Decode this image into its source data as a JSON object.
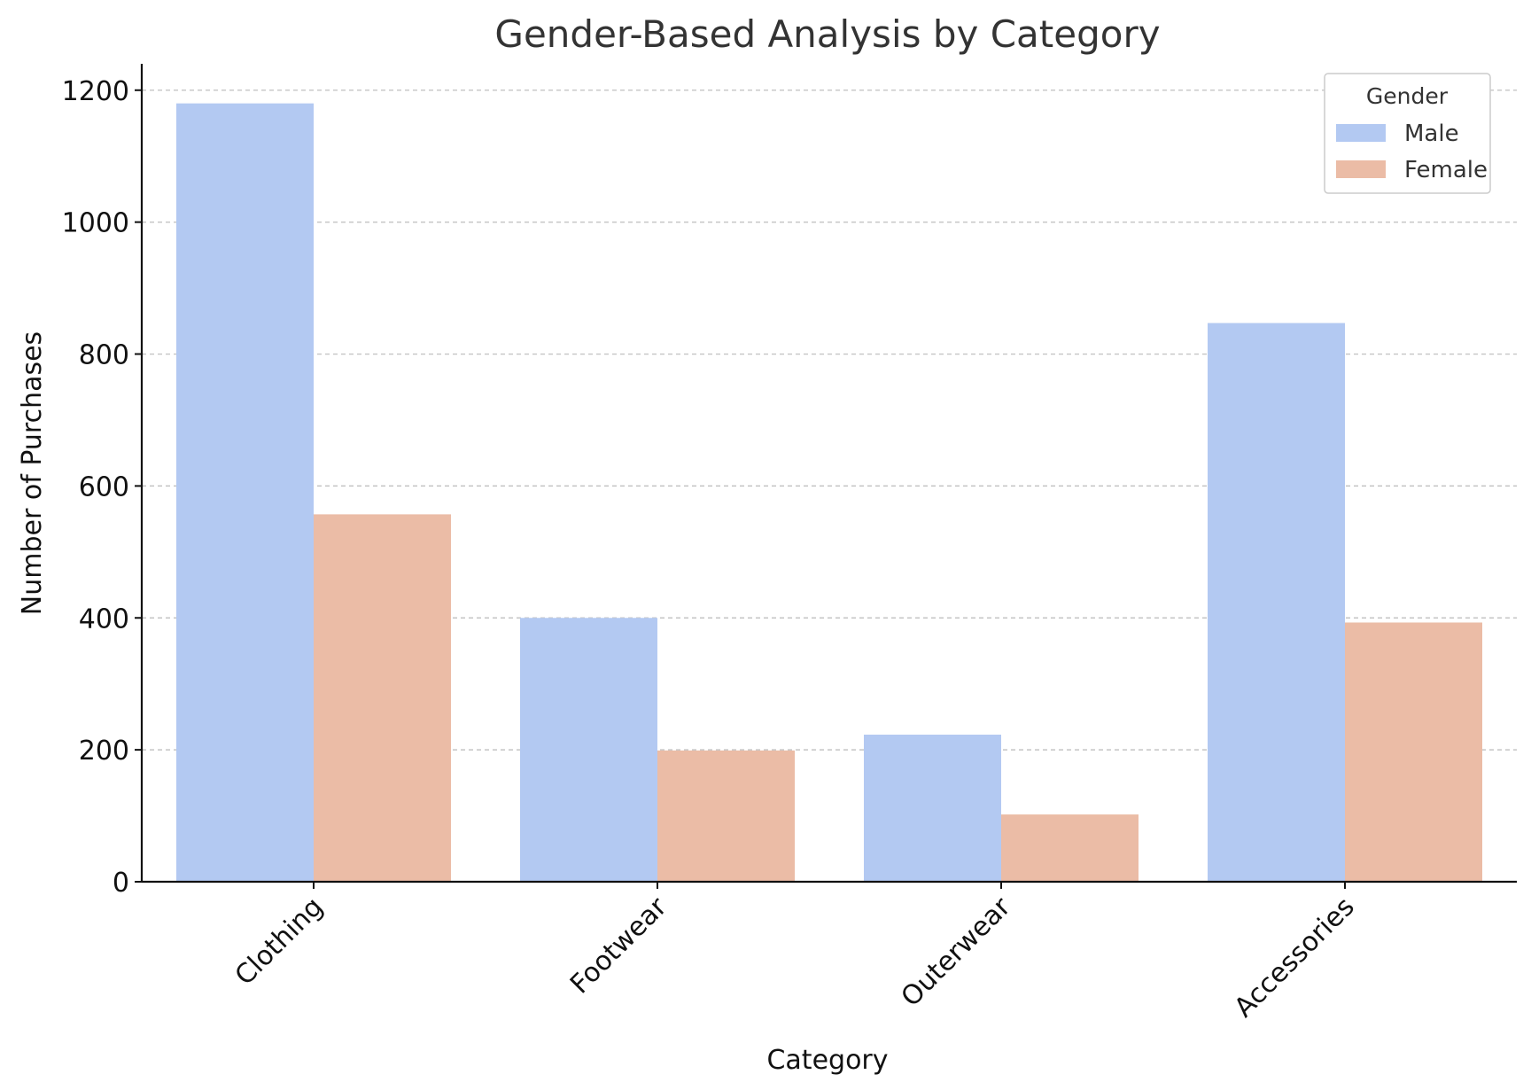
{
  "chart_data": {
    "type": "bar",
    "title": "Gender-Based Analysis by Category",
    "xlabel": "Category",
    "ylabel": "Number of Purchases",
    "categories": [
      "Clothing",
      "Footwear",
      "Outerwear",
      "Accessories"
    ],
    "series": [
      {
        "name": "Male",
        "values": [
          1180,
          400,
          223,
          847
        ],
        "color": "#b3c9f2"
      },
      {
        "name": "Female",
        "values": [
          557,
          199,
          102,
          393
        ],
        "color": "#ebbca6"
      }
    ],
    "ylim": [
      0,
      1240
    ],
    "yticks": [
      0,
      200,
      400,
      600,
      800,
      1000,
      1200
    ],
    "grid": "horizontal dashed",
    "legend": {
      "title": "Gender",
      "position": "top-right"
    }
  }
}
